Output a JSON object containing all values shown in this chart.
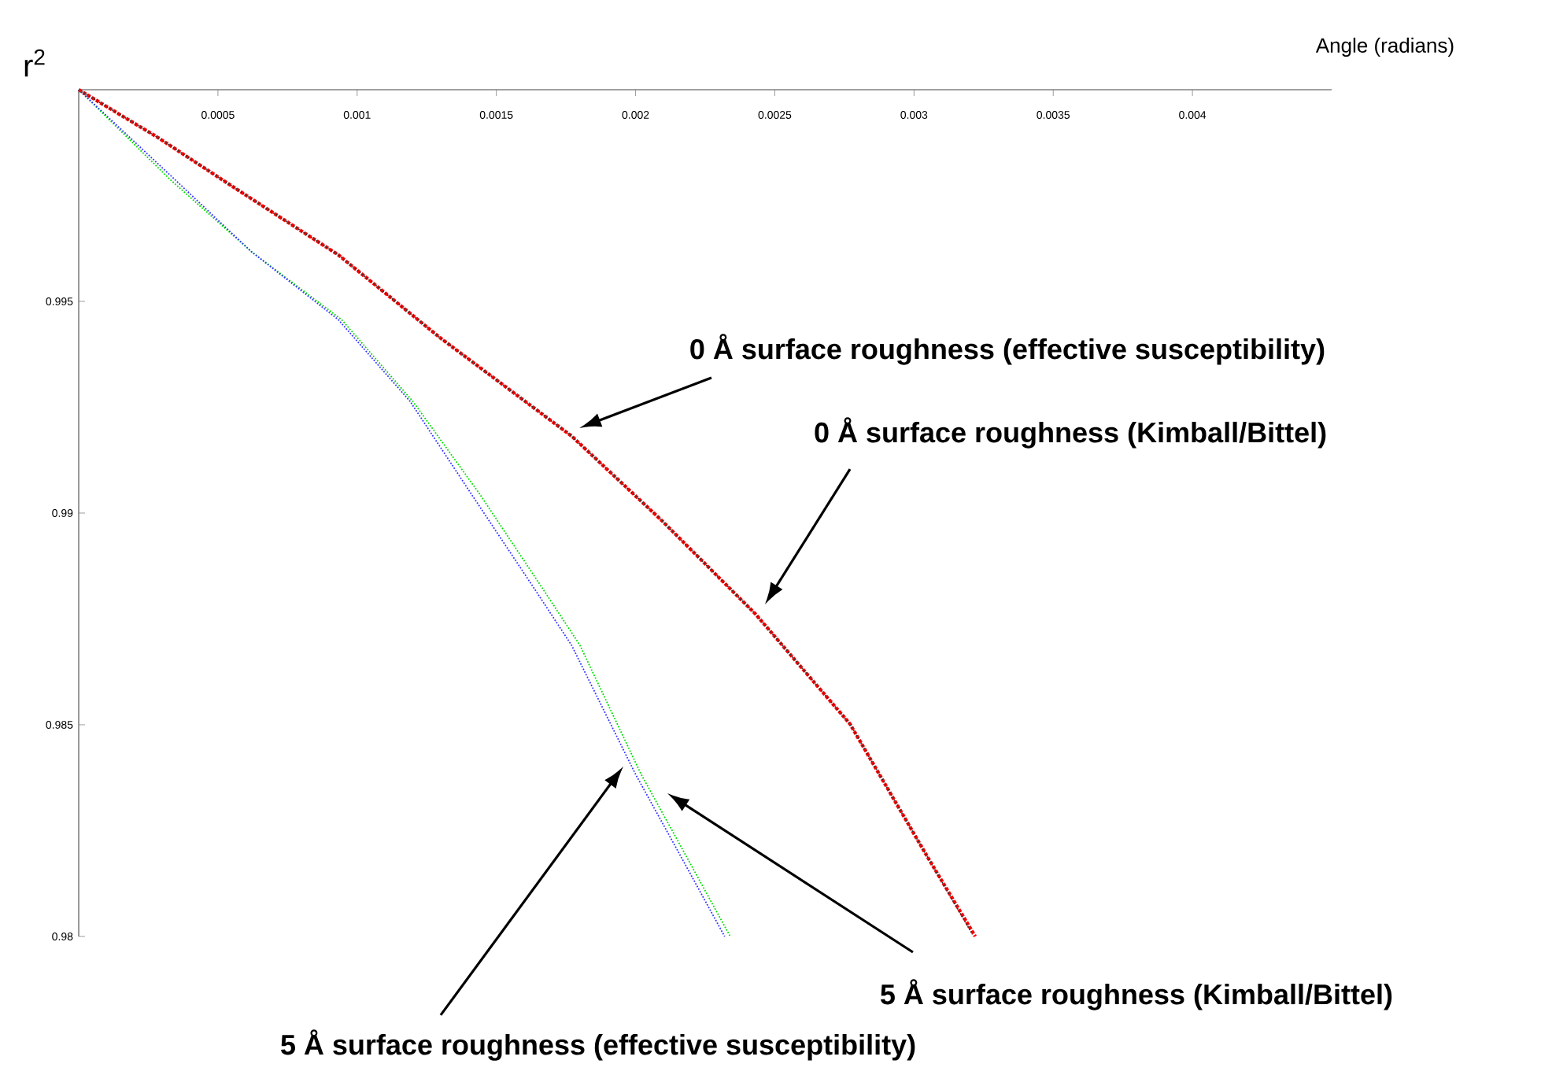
{
  "chart_data": {
    "type": "line",
    "ylabel": "r$^{2}$",
    "xlabel": "Angle (radians)",
    "xlim": [
      0,
      0.0045
    ],
    "ylim": [
      0.98,
      1
    ],
    "xticks": [
      0.0005,
      0.001,
      0.0015,
      0.002,
      0.0025,
      0.003,
      0.0035,
      0.004
    ],
    "yticks": [
      0.98,
      0.985,
      0.99,
      0.995
    ],
    "marker": "none",
    "line_style": "dotted",
    "series": [
      {
        "color": "#ff0000",
        "x": [
          0,
          0.000282,
          0.000565,
          0.000932,
          0.0013,
          0.00177,
          0.00209,
          0.00243,
          0.00277,
          0.00305,
          0.00322
        ],
        "values": [
          1,
          0.99888,
          0.99766,
          0.9961,
          0.99413,
          0.99182,
          0.98985,
          0.98762,
          0.98502,
          0.98186,
          0.98
        ]
      },
      {
        "color": "#333333",
        "x": [
          0,
          0.000282,
          0.000565,
          0.000932,
          0.0013,
          0.00177,
          0.00209,
          0.00243,
          0.00277,
          0.00305,
          0.00321
        ],
        "values": [
          1,
          0.99888,
          0.99766,
          0.9961,
          0.99413,
          0.99182,
          0.98985,
          0.98762,
          0.98502,
          0.98186,
          0.98005
        ]
      },
      {
        "color": "#00dd00",
        "x": [
          0,
          0.000328,
          0.000621,
          0.000944,
          0.0012,
          0.00144,
          0.00167,
          0.0018,
          0.00202,
          0.00217,
          0.00234
        ],
        "values": [
          1,
          0.99788,
          0.99617,
          0.99457,
          0.99264,
          0.99045,
          0.98818,
          0.98688,
          0.98383,
          0.98204,
          0.98
        ]
      },
      {
        "color": "#3333ff",
        "x": [
          0,
          0.000345,
          0.000621,
          0.000932,
          0.00119,
          0.00141,
          0.00164,
          0.00177,
          0.002,
          0.00215,
          0.00232
        ],
        "values": [
          1,
          0.99788,
          0.99617,
          0.99457,
          0.99264,
          0.99045,
          0.98818,
          0.98688,
          0.98383,
          0.98204,
          0.98
        ]
      }
    ],
    "annotations": [
      "0 Å surface roughness (effective susceptibility)",
      "0 Å surface roughness (Kimball/Bittel)",
      "5 Å surface roughness (Kimball/Bittel)",
      "5 Å surface roughness (effective susceptibility)"
    ]
  }
}
